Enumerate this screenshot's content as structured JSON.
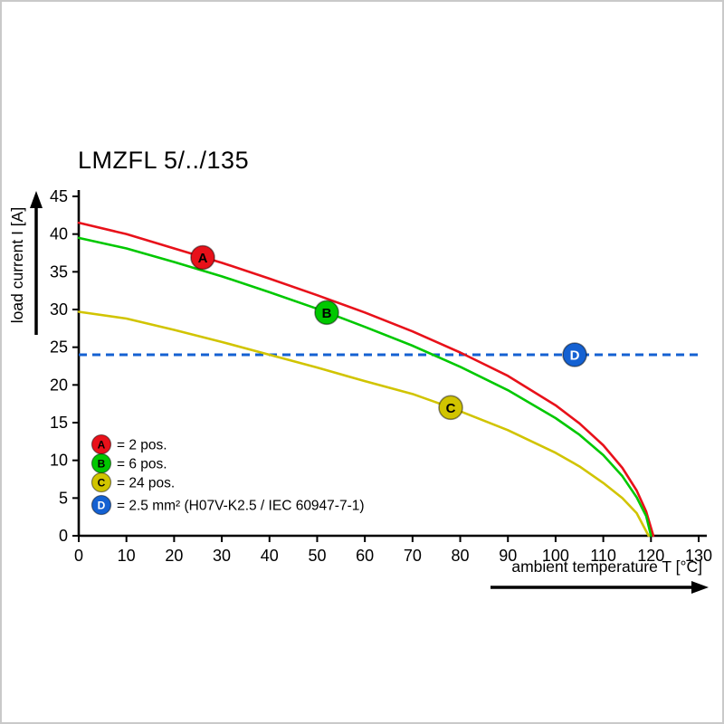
{
  "title": "LMZFL 5/../135",
  "colors": {
    "red": "#e8111a",
    "green": "#00c800",
    "yellow": "#d1c400",
    "blue": "#1461d2",
    "axis": "#000000"
  },
  "chart_data": {
    "type": "line",
    "title": "LMZFL 5/../135",
    "xlabel": "ambient temperature T [°C]",
    "ylabel": "load current I [A]",
    "xlim": [
      0,
      130
    ],
    "ylim": [
      0,
      45
    ],
    "x_ticks": [
      0,
      10,
      20,
      30,
      40,
      50,
      60,
      70,
      80,
      90,
      100,
      110,
      120,
      130
    ],
    "y_ticks": [
      0,
      5,
      10,
      15,
      20,
      25,
      30,
      35,
      40,
      45
    ],
    "grid": false,
    "legend_position": "lower-left-inside",
    "series": [
      {
        "name": "A",
        "label": "2 pos.",
        "color": "#e8111a",
        "letter_color": "#000000",
        "marker_at": {
          "x": 26,
          "y": 36.9
        },
        "points": [
          [
            0,
            41.5
          ],
          [
            10,
            40.0
          ],
          [
            20,
            38.1
          ],
          [
            30,
            36.2
          ],
          [
            40,
            34.1
          ],
          [
            50,
            31.9
          ],
          [
            60,
            29.6
          ],
          [
            70,
            27.1
          ],
          [
            80,
            24.3
          ],
          [
            90,
            21.2
          ],
          [
            100,
            17.3
          ],
          [
            105,
            14.9
          ],
          [
            110,
            12.0
          ],
          [
            114,
            9.0
          ],
          [
            117,
            6.0
          ],
          [
            119,
            3.2
          ],
          [
            120.5,
            0
          ]
        ]
      },
      {
        "name": "B",
        "label": "6 pos.",
        "color": "#00c800",
        "letter_color": "#000000",
        "marker_at": {
          "x": 52,
          "y": 29.6
        },
        "points": [
          [
            0,
            39.5
          ],
          [
            10,
            38.1
          ],
          [
            20,
            36.3
          ],
          [
            30,
            34.4
          ],
          [
            40,
            32.3
          ],
          [
            50,
            30.1
          ],
          [
            60,
            27.7
          ],
          [
            70,
            25.2
          ],
          [
            80,
            22.4
          ],
          [
            90,
            19.3
          ],
          [
            100,
            15.6
          ],
          [
            105,
            13.4
          ],
          [
            110,
            10.7
          ],
          [
            114,
            7.9
          ],
          [
            117,
            5.1
          ],
          [
            119,
            2.6
          ],
          [
            120,
            0
          ]
        ]
      },
      {
        "name": "C",
        "label": "24 pos.",
        "color": "#d1c400",
        "letter_color": "#000000",
        "marker_at": {
          "x": 78,
          "y": 17.0
        },
        "points": [
          [
            0,
            29.7
          ],
          [
            10,
            28.8
          ],
          [
            20,
            27.3
          ],
          [
            30,
            25.7
          ],
          [
            40,
            24.0
          ],
          [
            50,
            22.3
          ],
          [
            60,
            20.5
          ],
          [
            70,
            18.8
          ],
          [
            78,
            17.0
          ],
          [
            90,
            14.0
          ],
          [
            100,
            11.0
          ],
          [
            105,
            9.2
          ],
          [
            110,
            7.0
          ],
          [
            114,
            5.0
          ],
          [
            117,
            3.0
          ],
          [
            119.5,
            0
          ]
        ]
      }
    ],
    "reference_line": {
      "name": "D",
      "y": 24,
      "color": "#1461d2",
      "letter_color": "#ffffff",
      "style": "dashed",
      "label": "2.5 mm² (H07V-K2.5 / IEC 60947-7-1)",
      "marker_at": {
        "x": 104,
        "y": 24
      }
    },
    "legend": [
      {
        "letter": "A",
        "color": "#e8111a",
        "letter_color": "#000000",
        "text": "= 2 pos."
      },
      {
        "letter": "B",
        "color": "#00c800",
        "letter_color": "#000000",
        "text": "= 6 pos."
      },
      {
        "letter": "C",
        "color": "#d1c400",
        "letter_color": "#000000",
        "text": "= 24 pos."
      },
      {
        "letter": "D",
        "color": "#1461d2",
        "letter_color": "#ffffff",
        "text": "= 2.5 mm² (H07V-K2.5 / IEC 60947-7-1)"
      }
    ]
  }
}
